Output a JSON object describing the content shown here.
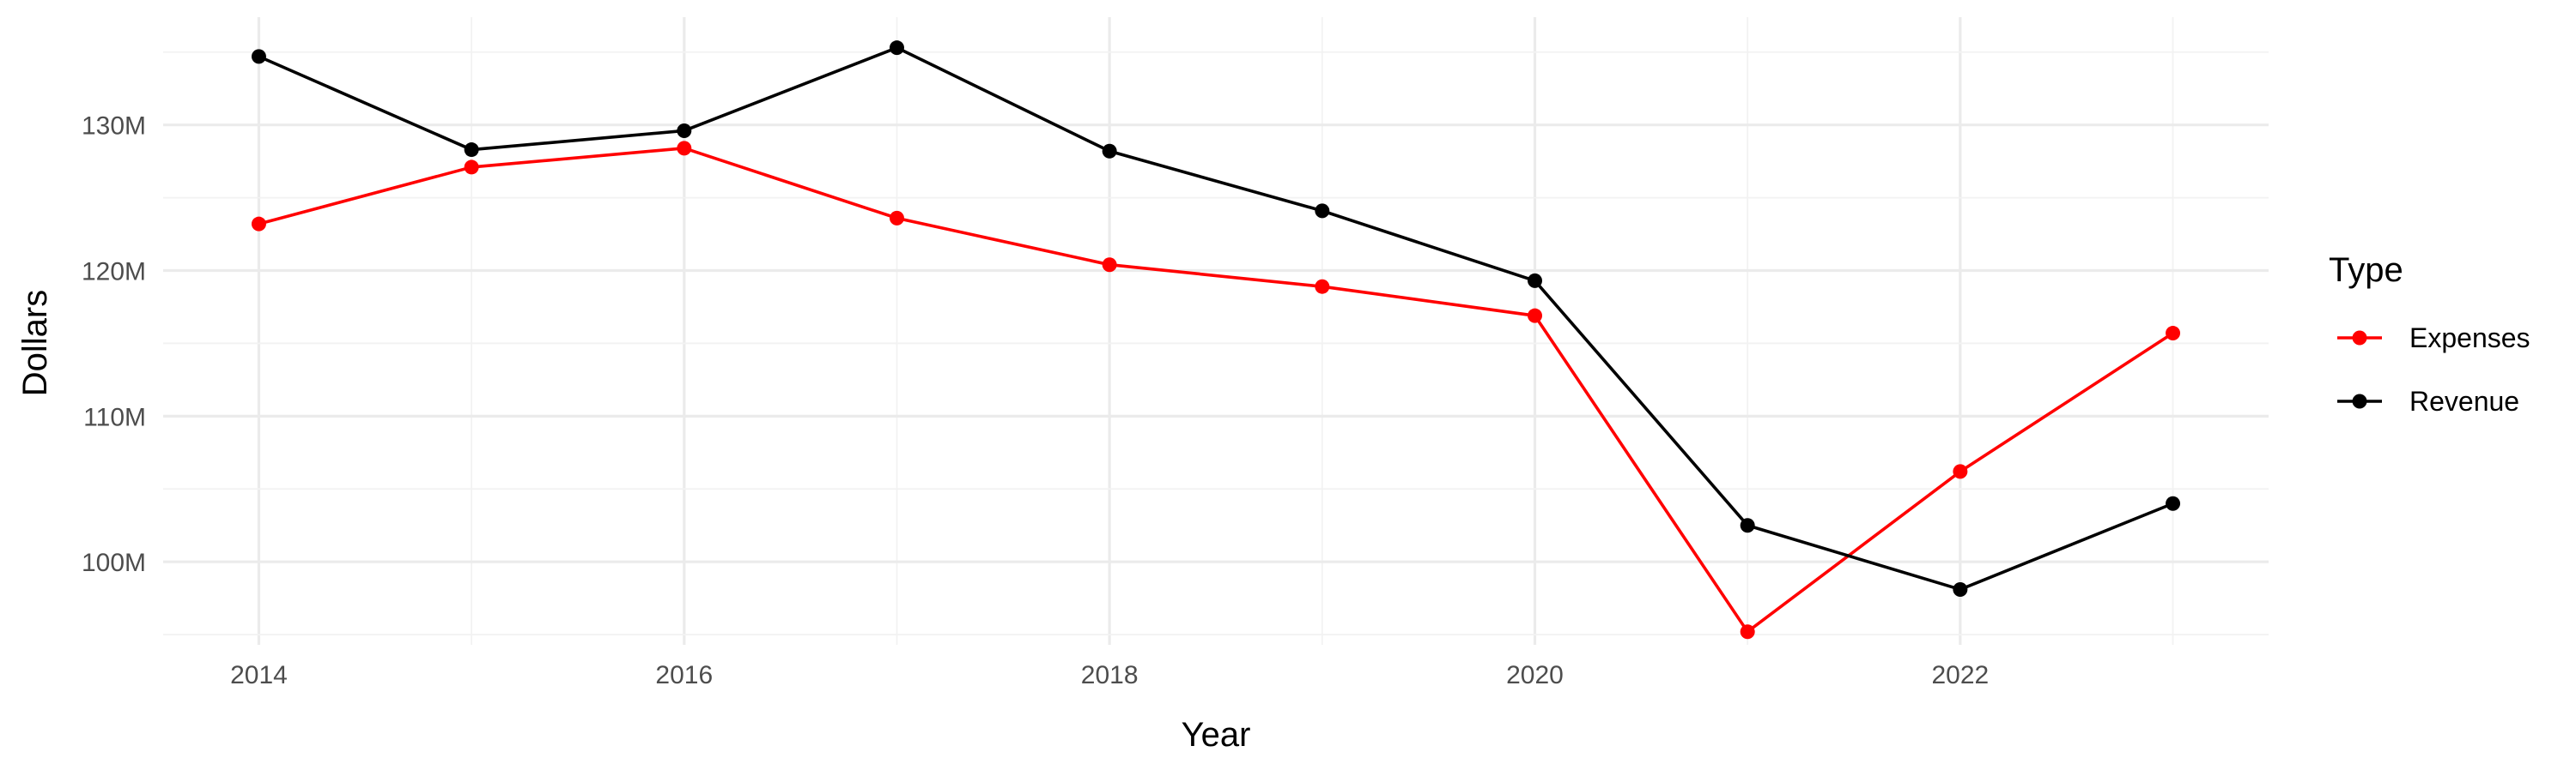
{
  "chart_data": {
    "type": "line",
    "title": "",
    "xlabel": "Year",
    "ylabel": "Dollars",
    "x": [
      2014,
      2015,
      2016,
      2017,
      2018,
      2019,
      2020,
      2021,
      2022,
      2023
    ],
    "xlim": [
      2013.55,
      2023.45
    ],
    "ylim": [
      94.3,
      137.4
    ],
    "x_ticks": [
      2014,
      2016,
      2018,
      2020,
      2022
    ],
    "x_tick_labels": [
      "2014",
      "2016",
      "2018",
      "2020",
      "2022"
    ],
    "y_ticks": [
      100,
      110,
      120,
      130
    ],
    "y_tick_labels": [
      "100M",
      "110M",
      "120M",
      "130M"
    ],
    "y_unit": "millions of dollars",
    "grid": true,
    "legend": {
      "title": "Type",
      "placement": "right"
    },
    "series": [
      {
        "name": "Expenses",
        "color": "#ff0000",
        "values": [
          123.2,
          127.1,
          128.4,
          123.6,
          120.4,
          118.9,
          116.9,
          95.2,
          106.2,
          115.7
        ]
      },
      {
        "name": "Revenue",
        "color": "#000000",
        "values": [
          134.7,
          128.3,
          129.6,
          135.3,
          128.2,
          124.1,
          119.3,
          102.5,
          98.1,
          104.0
        ]
      }
    ]
  }
}
